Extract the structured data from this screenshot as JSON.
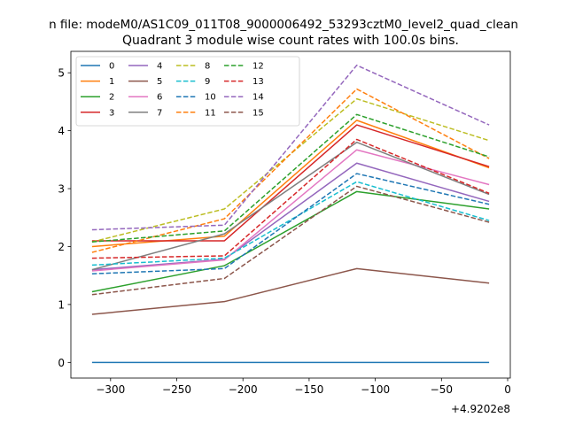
{
  "chart_data": {
    "type": "line",
    "suptitle": "n file: modeM0/AS1C09_011T08_9000006492_53293cztM0_level2_quad_clean",
    "title": "Quadrant 3 module wise count rates with 100.0s bins.",
    "xlabel": "",
    "ylabel": "",
    "x_offset_label": "+4.9202e8",
    "x": [
      -314,
      -214,
      -114,
      -14
    ],
    "xlim": [
      -330,
      2
    ],
    "ylim": [
      -0.27,
      5.37
    ],
    "xticks": [
      -300,
      -250,
      -200,
      -150,
      -100,
      -50,
      0
    ],
    "xtick_labels": [
      "−300",
      "−250",
      "−200",
      "−150",
      "−100",
      "−50",
      "0"
    ],
    "yticks": [
      0,
      1,
      2,
      3,
      4,
      5
    ],
    "ytick_labels": [
      "0",
      "1",
      "2",
      "3",
      "4",
      "5"
    ],
    "grid": false,
    "legend_position": "top-left",
    "legend_columns": 4,
    "series": [
      {
        "name": "0",
        "color": "#1f77b4",
        "style": "solid",
        "values": [
          0.0,
          0.0,
          0.0,
          0.0
        ]
      },
      {
        "name": "1",
        "color": "#ff7f0e",
        "style": "solid",
        "values": [
          2.0,
          2.18,
          4.18,
          3.36
        ]
      },
      {
        "name": "2",
        "color": "#2ca02c",
        "style": "solid",
        "values": [
          1.22,
          1.67,
          2.95,
          2.65
        ]
      },
      {
        "name": "3",
        "color": "#d62728",
        "style": "solid",
        "values": [
          2.1,
          2.1,
          4.1,
          3.38
        ]
      },
      {
        "name": "4",
        "color": "#9467bd",
        "style": "solid",
        "values": [
          1.6,
          1.78,
          3.44,
          2.78
        ]
      },
      {
        "name": "5",
        "color": "#8c564b",
        "style": "solid",
        "values": [
          0.83,
          1.05,
          1.62,
          1.37
        ]
      },
      {
        "name": "6",
        "color": "#e377c2",
        "style": "solid",
        "values": [
          1.58,
          1.77,
          3.67,
          3.07
        ]
      },
      {
        "name": "7",
        "color": "#7f7f7f",
        "style": "solid",
        "values": [
          1.6,
          2.22,
          3.8,
          2.9
        ]
      },
      {
        "name": "8",
        "color": "#bcbd22",
        "style": "dashed",
        "values": [
          2.08,
          2.65,
          4.55,
          3.83
        ]
      },
      {
        "name": "9",
        "color": "#17becf",
        "style": "dashed",
        "values": [
          1.68,
          1.8,
          3.12,
          2.45
        ]
      },
      {
        "name": "10",
        "color": "#1f77b4",
        "style": "dashed",
        "values": [
          1.53,
          1.62,
          3.26,
          2.73
        ]
      },
      {
        "name": "11",
        "color": "#ff7f0e",
        "style": "dashed",
        "values": [
          1.9,
          2.48,
          4.72,
          3.52
        ]
      },
      {
        "name": "12",
        "color": "#2ca02c",
        "style": "dashed",
        "values": [
          2.08,
          2.27,
          4.28,
          3.55
        ]
      },
      {
        "name": "13",
        "color": "#d62728",
        "style": "dashed",
        "values": [
          1.8,
          1.84,
          3.85,
          2.92
        ]
      },
      {
        "name": "14",
        "color": "#9467bd",
        "style": "dashed",
        "values": [
          2.29,
          2.37,
          5.13,
          4.1
        ]
      },
      {
        "name": "15",
        "color": "#8c564b",
        "style": "dashed",
        "values": [
          1.17,
          1.45,
          3.04,
          2.42
        ]
      }
    ]
  }
}
